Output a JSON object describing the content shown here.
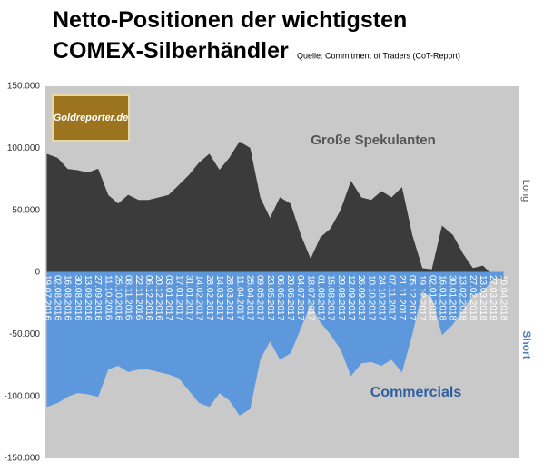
{
  "chart_data": {
    "type": "area",
    "title": [
      "Netto-Positionen der wichtigsten",
      "COMEX-Silberhändler"
    ],
    "subtitle": "Quelle: Commitment of Traders (CoT-Report)",
    "logo": "Goldreporter.de",
    "side_labels": [
      "Long",
      "Short"
    ],
    "categories": [
      "19.07.2016",
      "02.08.2016",
      "16.08.2016",
      "30.08.2016",
      "13.09.2016",
      "27.09.2016",
      "11.10.2016",
      "25.10.2016",
      "08.11.2016",
      "22.11.2016",
      "06.12.2016",
      "20.12.2016",
      "03.01.2017",
      "17.01.2017",
      "31.01.2017",
      "14.02.2017",
      "28.02.2017",
      "14.03.2017",
      "28.03.2017",
      "11.04.2017",
      "25.04.2017",
      "09.05.2017",
      "23.05.2017",
      "06.06.2017",
      "20.06.2017",
      "04.07.2017",
      "18.07.2017",
      "01.08.2017",
      "15.08.2017",
      "29.08.2017",
      "12.09.2017",
      "26.09.2017",
      "10.10.2017",
      "24.10.2017",
      "07.11.2017",
      "21.11.2017",
      "05.12.2017",
      "19.12.2017",
      "02.01.2018",
      "16.01.2018",
      "30.01.2018",
      "13.02.2018",
      "27.02.2018",
      "13.03.2018",
      "27.03.2018",
      "10.04.2018"
    ],
    "series": [
      {
        "name": "Große Spekulanten",
        "color": "#3b3b3b",
        "values": [
          95000,
          92000,
          83000,
          82000,
          80000,
          83000,
          62000,
          55000,
          62000,
          58000,
          58000,
          60000,
          62000,
          70000,
          78000,
          88000,
          95000,
          82000,
          92000,
          105000,
          100000,
          60000,
          43000,
          60000,
          55000,
          30000,
          10000,
          28000,
          35000,
          50000,
          73000,
          60000,
          58000,
          65000,
          60000,
          68000,
          30000,
          3000,
          2000,
          37000,
          30000,
          15000,
          3000,
          5000,
          -3000,
          -5000
        ]
      },
      {
        "name": "Commercials",
        "color": "#5d98dd",
        "values": [
          -108000,
          -105000,
          -100000,
          -97000,
          -98000,
          -100000,
          -78000,
          -75000,
          -80000,
          -78000,
          -78000,
          -80000,
          -82000,
          -85000,
          -95000,
          -105000,
          -108000,
          -97000,
          -103000,
          -115000,
          -110000,
          -70000,
          -55000,
          -70000,
          -65000,
          -45000,
          -25000,
          -40000,
          -50000,
          -62000,
          -83000,
          -73000,
          -72000,
          -75000,
          -70000,
          -80000,
          -50000,
          -15000,
          -20000,
          -50000,
          -42000,
          -30000,
          -18000,
          -15000,
          -5000,
          -3000
        ]
      }
    ],
    "ylim": [
      -150000,
      150000
    ],
    "yticks": [
      {
        "value": 150000,
        "label": "150.000"
      },
      {
        "value": 100000,
        "label": "100.000"
      },
      {
        "value": 50000,
        "label": "50.000"
      },
      0,
      {
        "value": -50000,
        "label": "-50.000"
      },
      {
        "value": -100000,
        "label": "-100.000"
      },
      {
        "value": -150000,
        "label": "-150.000"
      }
    ],
    "grid": false
  }
}
